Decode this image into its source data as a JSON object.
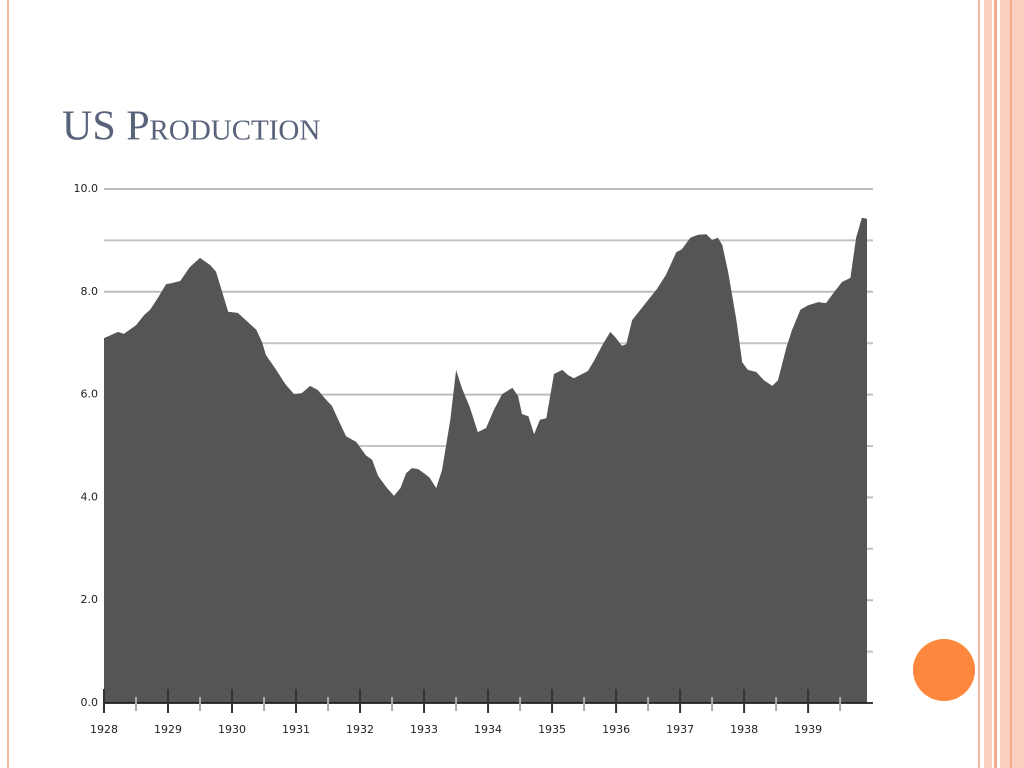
{
  "chart_data": {
    "type": "area",
    "title": "US Production",
    "color": "#555555",
    "xlim": [
      1928,
      1939.92
    ],
    "xticks": [
      1928,
      1929,
      1930,
      1931,
      1932,
      1933,
      1934,
      1935,
      1936,
      1937,
      1938,
      1939
    ],
    "xticks_minor": [
      1928.5,
      1929.5,
      1930.5,
      1931.5,
      1932.5,
      1933.5,
      1934.5,
      1935.5,
      1936.5,
      1937.5,
      1938.5,
      1939.5
    ],
    "ylim": [
      0,
      10
    ],
    "yticks": [
      {
        "value": 0,
        "label": "0.0"
      },
      {
        "value": 2,
        "label": "2.0"
      },
      {
        "value": 4,
        "label": "4.0"
      },
      {
        "value": 6,
        "label": "6.0"
      },
      {
        "value": 8,
        "label": "8.0"
      },
      {
        "value": 10,
        "label": "10.0"
      }
    ],
    "yticks_minor": [
      1,
      3,
      5,
      7,
      9
    ],
    "grid": true,
    "x": [
      1928.0,
      1928.22,
      1928.31,
      1928.5,
      1928.63,
      1928.72,
      1928.84,
      1928.97,
      1929.06,
      1929.19,
      1929.34,
      1929.5,
      1929.66,
      1929.75,
      1929.94,
      1930.09,
      1930.25,
      1930.38,
      1930.47,
      1930.53,
      1930.69,
      1930.84,
      1930.97,
      1931.09,
      1931.22,
      1931.34,
      1931.47,
      1931.56,
      1931.66,
      1931.78,
      1931.94,
      1932.09,
      1932.19,
      1932.28,
      1932.41,
      1932.53,
      1932.63,
      1932.72,
      1932.81,
      1932.91,
      1933.03,
      1933.09,
      1933.19,
      1933.28,
      1933.41,
      1933.5,
      1933.59,
      1933.72,
      1933.84,
      1933.97,
      1934.09,
      1934.22,
      1934.38,
      1934.47,
      1934.53,
      1934.63,
      1934.72,
      1934.81,
      1934.91,
      1935.03,
      1935.16,
      1935.25,
      1935.34,
      1935.47,
      1935.56,
      1935.66,
      1935.78,
      1935.91,
      1936.0,
      1936.09,
      1936.16,
      1936.25,
      1936.38,
      1936.5,
      1936.63,
      1936.78,
      1936.94,
      1937.03,
      1937.16,
      1937.28,
      1937.41,
      1937.5,
      1937.59,
      1937.66,
      1937.75,
      1937.88,
      1937.97,
      1938.06,
      1938.19,
      1938.31,
      1938.44,
      1938.53,
      1938.66,
      1938.75,
      1938.88,
      1939.0,
      1939.16,
      1939.28,
      1939.41,
      1939.53,
      1939.66,
      1939.75,
      1939.84,
      1939.92
    ],
    "values": [
      7.1,
      7.22,
      7.18,
      7.35,
      7.55,
      7.65,
      7.88,
      8.15,
      8.17,
      8.21,
      8.48,
      8.66,
      8.52,
      8.39,
      7.61,
      7.59,
      7.41,
      7.26,
      7.02,
      6.77,
      6.48,
      6.19,
      6.01,
      6.03,
      6.17,
      6.09,
      5.9,
      5.78,
      5.51,
      5.19,
      5.08,
      4.82,
      4.73,
      4.42,
      4.2,
      4.03,
      4.18,
      4.47,
      4.57,
      4.55,
      4.44,
      4.38,
      4.18,
      4.53,
      5.51,
      6.48,
      6.13,
      5.74,
      5.27,
      5.35,
      5.7,
      6.01,
      6.13,
      5.97,
      5.62,
      5.58,
      5.23,
      5.51,
      5.54,
      6.4,
      6.48,
      6.38,
      6.32,
      6.4,
      6.46,
      6.67,
      6.95,
      7.22,
      7.1,
      6.95,
      6.98,
      7.45,
      7.65,
      7.84,
      8.04,
      8.33,
      8.77,
      8.83,
      9.05,
      9.11,
      9.12,
      9.01,
      9.05,
      8.91,
      8.39,
      7.45,
      6.63,
      6.48,
      6.44,
      6.28,
      6.17,
      6.28,
      6.91,
      7.26,
      7.65,
      7.74,
      7.8,
      7.78,
      8.0,
      8.19,
      8.27,
      9.05,
      9.44,
      9.42
    ]
  }
}
